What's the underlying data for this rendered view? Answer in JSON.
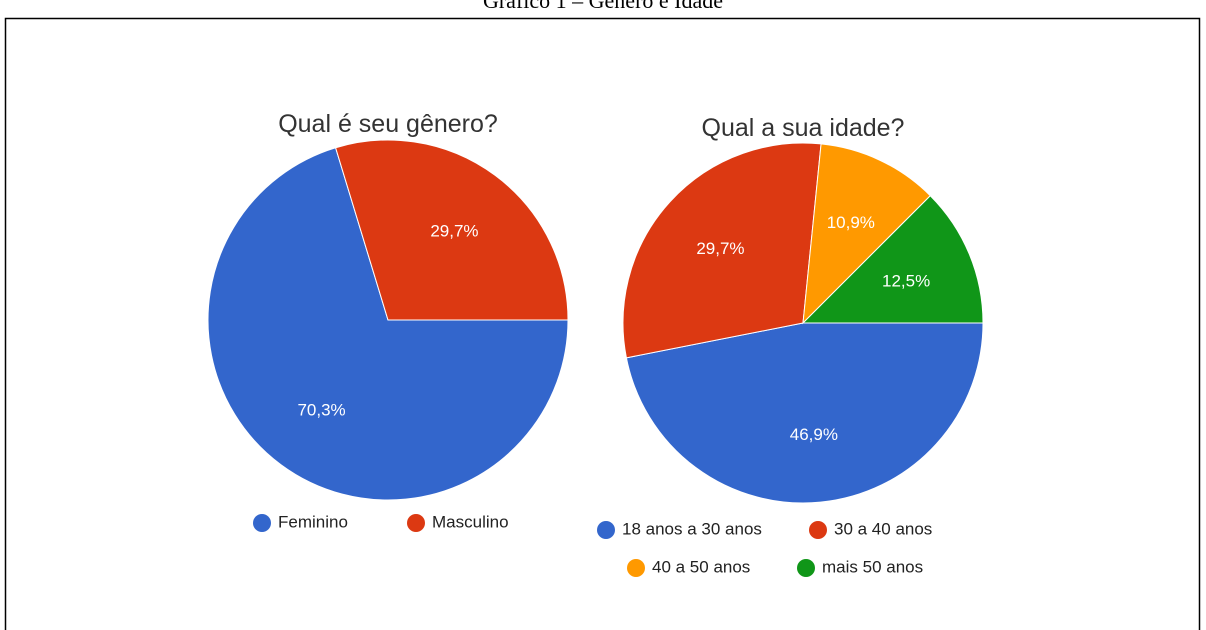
{
  "caption": "Gráfico 1 – Gênero e Idade",
  "chart_data": [
    {
      "type": "pie",
      "title": "Qual é seu gênero?",
      "categories": [
        "Feminino",
        "Masculino"
      ],
      "values": [
        70.3,
        29.7
      ],
      "value_labels": [
        "70,3%",
        "29,7%"
      ],
      "colors": [
        "#3366cc",
        "#dc3912"
      ]
    },
    {
      "type": "pie",
      "title": "Qual a sua idade?",
      "categories": [
        "18 anos a 30 anos",
        "30 a 40 anos",
        "40 a 50 anos",
        "mais 50 anos"
      ],
      "values": [
        46.9,
        29.7,
        10.9,
        12.5
      ],
      "value_labels": [
        "46,9%",
        "29,7%",
        "10,9%",
        "12,5%"
      ],
      "colors": [
        "#3366cc",
        "#dc3912",
        "#ff9900",
        "#109618"
      ]
    }
  ]
}
